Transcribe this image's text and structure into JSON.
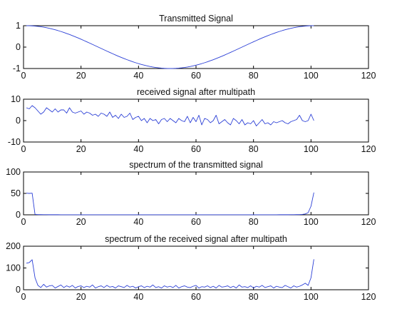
{
  "figure": {
    "panels_count_label": "4 subplots"
  },
  "chart_data": [
    {
      "type": "line",
      "title": "Transmitted Signal",
      "xlim": [
        0,
        120
      ],
      "ylim": [
        -1,
        1
      ],
      "xticks": [
        0,
        20,
        40,
        60,
        80,
        100,
        120
      ],
      "yticks": [
        -1,
        0,
        1
      ],
      "grid": false,
      "legend": "none",
      "color": "#2b3fd6",
      "series": [
        {
          "x": [
            1,
            2,
            3,
            4,
            5,
            6,
            7,
            8,
            9,
            10,
            11,
            12,
            13,
            14,
            15,
            16,
            17,
            18,
            19,
            20,
            21,
            22,
            23,
            24,
            25,
            26,
            27,
            28,
            29,
            30,
            31,
            32,
            33,
            34,
            35,
            36,
            37,
            38,
            39,
            40,
            41,
            42,
            43,
            44,
            45,
            46,
            47,
            48,
            49,
            50,
            51,
            52,
            53,
            54,
            55,
            56,
            57,
            58,
            59,
            60,
            61,
            62,
            63,
            64,
            65,
            66,
            67,
            68,
            69,
            70,
            71,
            72,
            73,
            74,
            75,
            76,
            77,
            78,
            79,
            80,
            81,
            82,
            83,
            84,
            85,
            86,
            87,
            88,
            89,
            90,
            91,
            92,
            93,
            94,
            95,
            96,
            97,
            98,
            99,
            100,
            101
          ],
          "y": [
            1.0,
            0.998,
            0.992,
            0.982,
            0.969,
            0.951,
            0.93,
            0.905,
            0.876,
            0.844,
            0.809,
            0.771,
            0.729,
            0.685,
            0.637,
            0.588,
            0.536,
            0.482,
            0.426,
            0.368,
            0.309,
            0.249,
            0.187,
            0.125,
            0.063,
            0.0,
            -0.063,
            -0.125,
            -0.187,
            -0.249,
            -0.309,
            -0.368,
            -0.426,
            -0.482,
            -0.536,
            -0.588,
            -0.637,
            -0.685,
            -0.729,
            -0.771,
            -0.809,
            -0.844,
            -0.876,
            -0.905,
            -0.93,
            -0.951,
            -0.969,
            -0.982,
            -0.992,
            -0.998,
            -1.0,
            -0.998,
            -0.992,
            -0.982,
            -0.969,
            -0.951,
            -0.93,
            -0.905,
            -0.876,
            -0.844,
            -0.809,
            -0.771,
            -0.729,
            -0.685,
            -0.637,
            -0.588,
            -0.536,
            -0.482,
            -0.426,
            -0.368,
            -0.309,
            -0.249,
            -0.187,
            -0.125,
            -0.063,
            0.0,
            0.063,
            0.125,
            0.187,
            0.249,
            0.309,
            0.368,
            0.426,
            0.482,
            0.536,
            0.588,
            0.637,
            0.685,
            0.729,
            0.771,
            0.809,
            0.844,
            0.876,
            0.905,
            0.93,
            0.951,
            0.969,
            0.982,
            0.992,
            0.998,
            1.0
          ]
        }
      ]
    },
    {
      "type": "line",
      "title": "received signal after multipath",
      "xlim": [
        0,
        120
      ],
      "ylim": [
        -10,
        10
      ],
      "xticks": [
        0,
        20,
        40,
        60,
        80,
        100,
        120
      ],
      "yticks": [
        -10,
        0,
        10
      ],
      "grid": false,
      "legend": "none",
      "color": "#2b3fd6",
      "series": [
        {
          "x": [
            1,
            2,
            3,
            4,
            5,
            6,
            7,
            8,
            9,
            10,
            11,
            12,
            13,
            14,
            15,
            16,
            17,
            18,
            19,
            20,
            21,
            22,
            23,
            24,
            25,
            26,
            27,
            28,
            29,
            30,
            31,
            32,
            33,
            34,
            35,
            36,
            37,
            38,
            39,
            40,
            41,
            42,
            43,
            44,
            45,
            46,
            47,
            48,
            49,
            50,
            51,
            52,
            53,
            54,
            55,
            56,
            57,
            58,
            59,
            60,
            61,
            62,
            63,
            64,
            65,
            66,
            67,
            68,
            69,
            70,
            71,
            72,
            73,
            74,
            75,
            76,
            77,
            78,
            79,
            80,
            81,
            82,
            83,
            84,
            85,
            86,
            87,
            88,
            89,
            90,
            91,
            92,
            93,
            94,
            95,
            96,
            97,
            98,
            99,
            100,
            101
          ],
          "y": [
            6,
            5.5,
            7,
            6,
            4.5,
            3,
            4,
            6,
            5,
            4,
            5.5,
            4,
            5,
            5,
            3.5,
            6,
            4,
            3.5,
            4,
            4.5,
            3,
            4,
            3.5,
            2.5,
            3,
            2,
            3.5,
            3,
            2,
            4,
            1.5,
            2.5,
            1,
            3,
            1.5,
            2,
            3.5,
            0.5,
            1.5,
            2,
            0,
            1,
            -1,
            1,
            0,
            0.5,
            -1.5,
            0.5,
            1,
            -0.5,
            1,
            0,
            -1,
            1,
            0,
            -0.5,
            2,
            -1,
            1.5,
            -0.5,
            2.5,
            -2,
            1,
            0.5,
            -1,
            0,
            2.5,
            -1.5,
            -0.5,
            0.5,
            -1,
            -2,
            1,
            0,
            -1.5,
            0.5,
            -2,
            -1,
            -1.5,
            0,
            -2.5,
            -1,
            0.5,
            -1.5,
            -1,
            -2,
            -0.5,
            -1,
            -0.5,
            0,
            -1,
            -1.5,
            -0.5,
            0,
            0.5,
            2.5,
            0,
            -0.5,
            0,
            3,
            0
          ]
        }
      ]
    },
    {
      "type": "line",
      "title": "spectrum of the transmitted signal",
      "xlim": [
        0,
        120
      ],
      "ylim": [
        0,
        100
      ],
      "xticks": [
        0,
        20,
        40,
        60,
        80,
        100,
        120
      ],
      "yticks": [
        0,
        50,
        100
      ],
      "grid": false,
      "legend": "none",
      "color": "#2b3fd6",
      "series": [
        {
          "x": [
            1,
            2,
            3,
            4,
            5,
            6,
            7,
            8,
            9,
            10,
            11,
            12,
            13,
            14,
            15,
            16,
            17,
            18,
            19,
            20,
            21,
            22,
            23,
            24,
            25,
            26,
            27,
            28,
            29,
            30,
            31,
            32,
            33,
            34,
            35,
            36,
            37,
            38,
            39,
            40,
            41,
            42,
            43,
            44,
            45,
            46,
            47,
            48,
            49,
            50,
            51,
            52,
            53,
            54,
            55,
            56,
            57,
            58,
            59,
            60,
            61,
            62,
            63,
            64,
            65,
            66,
            67,
            68,
            69,
            70,
            71,
            72,
            73,
            74,
            75,
            76,
            77,
            78,
            79,
            80,
            81,
            82,
            83,
            84,
            85,
            86,
            87,
            88,
            89,
            90,
            91,
            92,
            93,
            94,
            95,
            96,
            97,
            98,
            99,
            100,
            101
          ],
          "y": [
            50.5,
            50,
            50.5,
            1,
            0.6,
            0.4,
            0.3,
            0.3,
            0.2,
            0.2,
            0.2,
            0.2,
            0.1,
            0.1,
            0.1,
            0.1,
            0.1,
            0.1,
            0.1,
            0.1,
            0.1,
            0.1,
            0.1,
            0.1,
            0.1,
            0.1,
            0.1,
            0.1,
            0.1,
            0.1,
            0.1,
            0.1,
            0.1,
            0.1,
            0.1,
            0.1,
            0.1,
            0.1,
            0.1,
            0.1,
            0.1,
            0.1,
            0.1,
            0.1,
            0.1,
            0.1,
            0.1,
            0.1,
            0.1,
            0.1,
            0.1,
            0.1,
            0.1,
            0.1,
            0.1,
            0.1,
            0.1,
            0.1,
            0.1,
            0.1,
            0.1,
            0.1,
            0.1,
            0.1,
            0.1,
            0.1,
            0.1,
            0.1,
            0.1,
            0.1,
            0.1,
            0.1,
            0.1,
            0.1,
            0.1,
            0.1,
            0.1,
            0.1,
            0.1,
            0.1,
            0.1,
            0.1,
            0.1,
            0.1,
            0.1,
            0.1,
            0.1,
            0.1,
            0.2,
            0.2,
            0.2,
            0.2,
            0.3,
            0.3,
            0.4,
            0.6,
            1,
            2,
            5,
            20,
            52
          ]
        }
      ]
    },
    {
      "type": "line",
      "title": "spectrum of the received signal after multipath",
      "xlim": [
        0,
        120
      ],
      "ylim": [
        0,
        200
      ],
      "xticks": [
        0,
        20,
        40,
        60,
        80,
        100,
        120
      ],
      "yticks": [
        0,
        100,
        200
      ],
      "grid": false,
      "legend": "none",
      "color": "#2b3fd6",
      "series": [
        {
          "x": [
            1,
            2,
            3,
            4,
            5,
            6,
            7,
            8,
            9,
            10,
            11,
            12,
            13,
            14,
            15,
            16,
            17,
            18,
            19,
            20,
            21,
            22,
            23,
            24,
            25,
            26,
            27,
            28,
            29,
            30,
            31,
            32,
            33,
            34,
            35,
            36,
            37,
            38,
            39,
            40,
            41,
            42,
            43,
            44,
            45,
            46,
            47,
            48,
            49,
            50,
            51,
            52,
            53,
            54,
            55,
            56,
            57,
            58,
            59,
            60,
            61,
            62,
            63,
            64,
            65,
            66,
            67,
            68,
            69,
            70,
            71,
            72,
            73,
            74,
            75,
            76,
            77,
            78,
            79,
            80,
            81,
            82,
            83,
            84,
            85,
            86,
            87,
            88,
            89,
            90,
            91,
            92,
            93,
            94,
            95,
            96,
            97,
            98,
            99,
            100,
            101
          ],
          "y": [
            122,
            125,
            138,
            55,
            20,
            10,
            25,
            12,
            18,
            20,
            8,
            15,
            22,
            10,
            18,
            12,
            20,
            8,
            15,
            18,
            10,
            16,
            12,
            22,
            8,
            14,
            18,
            10,
            20,
            12,
            15,
            8,
            18,
            14,
            10,
            20,
            12,
            16,
            8,
            14,
            18,
            10,
            16,
            12,
            22,
            10,
            14,
            8,
            18,
            12,
            16,
            10,
            20,
            8,
            14,
            18,
            12,
            10,
            16,
            20,
            8,
            14,
            12,
            18,
            10,
            16,
            8,
            20,
            12,
            14,
            18,
            10,
            16,
            8,
            22,
            12,
            14,
            10,
            18,
            8,
            16,
            12,
            20,
            10,
            14,
            18,
            8,
            16,
            12,
            10,
            20,
            14,
            8,
            18,
            12,
            16,
            22,
            30,
            20,
            55,
            140
          ]
        }
      ]
    }
  ]
}
